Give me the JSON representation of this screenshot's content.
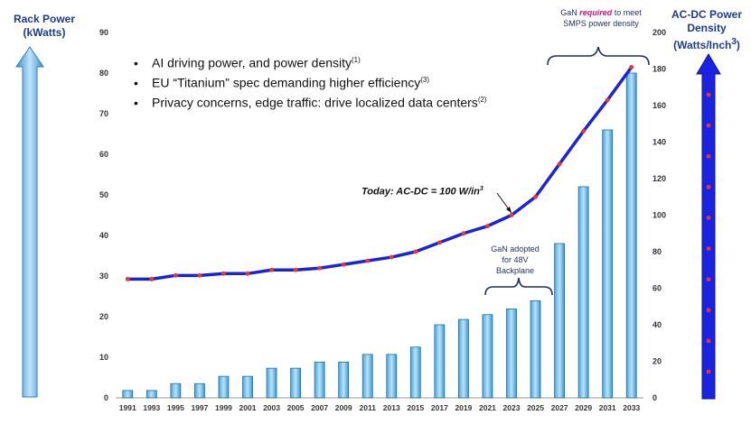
{
  "headers": {
    "left_line1": "Rack Power",
    "left_line2": "(kWatts)",
    "right_line1": "AC-DC Power",
    "right_line2": "Density",
    "right_line3": "(Watts/Inch",
    "right_line3_sup": "3",
    "right_line3_end": ")"
  },
  "bullets": [
    {
      "text": "AI driving power, and power density",
      "ref": "(1)"
    },
    {
      "text": "EU “Titanium” spec demanding higher efficiency",
      "ref": "(3)"
    },
    {
      "text": "Privacy concerns, edge traffic: drive localized data centers",
      "ref": "(2)"
    }
  ],
  "bullet_symbol": "•",
  "notes": {
    "top_before": "GaN ",
    "top_emph": "required",
    "top_after": " to meet",
    "top_line2": "SMPS power density",
    "gan_line1": "GaN adopted",
    "gan_line2": "for 48V",
    "gan_line3": "Backplane",
    "today_text": "Today: AC-DC = 100 W/in",
    "today_sup": "3"
  },
  "colors": {
    "bar_fill": "#7ec8ef",
    "bar_edge": "#1b6fa8",
    "line": "#1a23d6",
    "marker": "#ee3333",
    "axis_text": "#333333",
    "header_text": "#1f3c88"
  },
  "chart_data": {
    "type": "bar+line",
    "categories": [
      "1991",
      "1993",
      "1995",
      "1997",
      "1999",
      "2001",
      "2003",
      "2005",
      "2007",
      "2009",
      "2011",
      "2013",
      "2015",
      "2017",
      "2019",
      "2021",
      "2023",
      "2025",
      "2027",
      "2029",
      "2031",
      "2033"
    ],
    "series": [
      {
        "name": "Rack Power (kWatts)",
        "type": "bar",
        "axis": "left",
        "values": [
          1.8,
          1.8,
          3.5,
          3.5,
          5.3,
          5.3,
          7.3,
          7.3,
          8.8,
          8.8,
          10.7,
          10.7,
          12.5,
          18,
          19.3,
          20.5,
          21.9,
          23.9,
          38,
          52,
          66,
          80
        ]
      },
      {
        "name": "AC-DC Power Density (Watts/Inch3)",
        "type": "line",
        "axis": "right",
        "values": [
          65,
          65,
          67,
          67,
          68,
          68,
          70,
          70,
          71,
          73,
          75,
          77,
          80,
          85,
          90,
          94,
          100,
          110,
          128,
          146,
          163,
          181
        ]
      }
    ],
    "left_axis": {
      "label": "Rack Power (kWatts)",
      "ylim": [
        0,
        90
      ],
      "ticks": [
        0,
        10,
        20,
        30,
        40,
        50,
        60,
        70,
        80,
        90
      ]
    },
    "right_axis": {
      "label": "AC-DC Power Density (Watts/Inch3)",
      "ylim": [
        0,
        200
      ],
      "ticks": [
        0,
        20,
        40,
        60,
        80,
        100,
        120,
        140,
        160,
        180,
        200
      ]
    },
    "right_arrow_dots": 10
  }
}
